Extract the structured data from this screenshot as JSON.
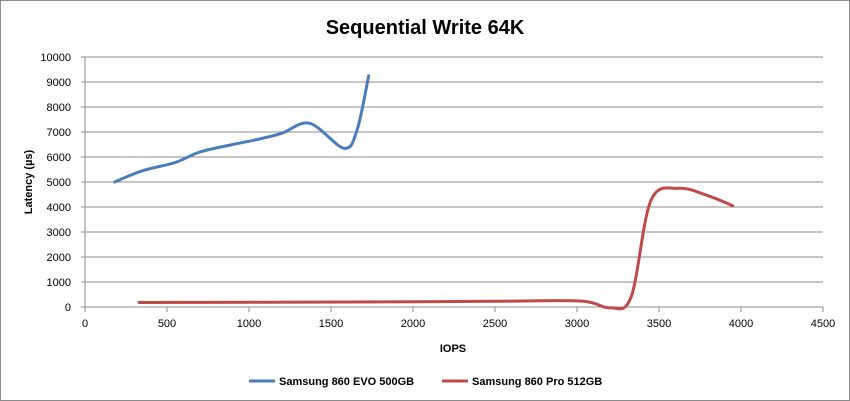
{
  "chart_data": {
    "type": "line",
    "title": "Sequential Write 64K",
    "xlabel": "IOPS",
    "ylabel": "Latency (µs)",
    "xlim": [
      0,
      4500
    ],
    "ylim": [
      0,
      10000
    ],
    "x_ticks": [
      0,
      500,
      1000,
      1500,
      2000,
      2500,
      3000,
      3500,
      4000,
      4500
    ],
    "y_ticks": [
      0,
      1000,
      2000,
      3000,
      4000,
      5000,
      6000,
      7000,
      8000,
      9000,
      10000
    ],
    "grid": "horizontal",
    "legend_position": "bottom",
    "series": [
      {
        "name": "Samsung 860 EVO 500GB",
        "color": "#4a7ebb",
        "points": [
          [
            180,
            5000
          ],
          [
            350,
            5450
          ],
          [
            550,
            5780
          ],
          [
            700,
            6200
          ],
          [
            900,
            6500
          ],
          [
            1050,
            6700
          ],
          [
            1200,
            6950
          ],
          [
            1370,
            7350
          ],
          [
            1580,
            6350
          ],
          [
            1660,
            7100
          ],
          [
            1730,
            9250
          ]
        ]
      },
      {
        "name": "Samsung 860 Pro 512GB",
        "color": "#be4b48",
        "points": [
          [
            330,
            180
          ],
          [
            700,
            185
          ],
          [
            1100,
            190
          ],
          [
            1600,
            200
          ],
          [
            2000,
            210
          ],
          [
            2500,
            230
          ],
          [
            3020,
            240
          ],
          [
            3200,
            -30
          ],
          [
            3330,
            400
          ],
          [
            3450,
            4250
          ],
          [
            3620,
            4750
          ],
          [
            3800,
            4450
          ],
          [
            3950,
            4050
          ]
        ]
      }
    ]
  }
}
